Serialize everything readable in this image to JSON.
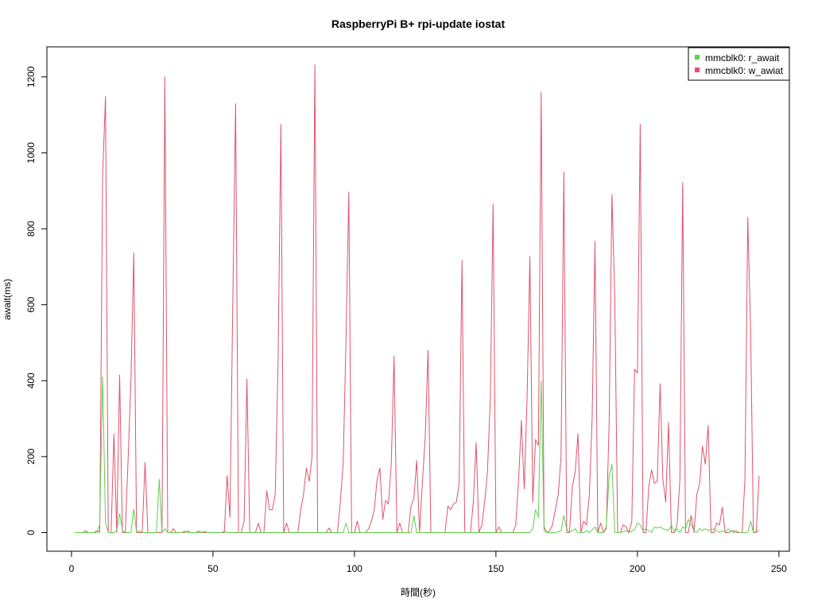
{
  "chart_data": {
    "type": "line",
    "title": "RaspberryPi B+ rpi-update iostat",
    "xlabel": "時間(秒)",
    "ylabel": "await(ms)",
    "xlim": [
      1,
      244
    ],
    "ylim": [
      0,
      1230
    ],
    "xticks": [
      0,
      50,
      100,
      150,
      200,
      250
    ],
    "yticks": [
      0,
      200,
      400,
      600,
      800,
      1000,
      1200
    ],
    "grid": false,
    "legend_position": "top-right",
    "series": [
      {
        "name": "mmcblk0: r_await",
        "color": "#61d04f",
        "points": [
          [
            1,
            0
          ],
          [
            9,
            0
          ],
          [
            10,
            20
          ],
          [
            11,
            410
          ],
          [
            12,
            25
          ],
          [
            13,
            0
          ],
          [
            15,
            0
          ],
          [
            16,
            5
          ],
          [
            17,
            50
          ],
          [
            18,
            5
          ],
          [
            19,
            0
          ],
          [
            21,
            0
          ],
          [
            22,
            62
          ],
          [
            23,
            0
          ],
          [
            24,
            5
          ],
          [
            25,
            0
          ],
          [
            30,
            0
          ],
          [
            31,
            140
          ],
          [
            32,
            0
          ],
          [
            33,
            10
          ],
          [
            34,
            0
          ],
          [
            39,
            0
          ],
          [
            40,
            4
          ],
          [
            41,
            0
          ],
          [
            46,
            0
          ],
          [
            47,
            4
          ],
          [
            48,
            0
          ],
          [
            53,
            0
          ],
          [
            54,
            4
          ],
          [
            55,
            0
          ],
          [
            96,
            0
          ],
          [
            97,
            25
          ],
          [
            98,
            0
          ],
          [
            120,
            0
          ],
          [
            121,
            45
          ],
          [
            122,
            0
          ],
          [
            162,
            0
          ],
          [
            163,
            10
          ],
          [
            164,
            60
          ],
          [
            165,
            40
          ],
          [
            166,
            400
          ],
          [
            167,
            5
          ],
          [
            168,
            0
          ],
          [
            171,
            0
          ],
          [
            173,
            5
          ],
          [
            174,
            45
          ],
          [
            175,
            10
          ],
          [
            176,
            0
          ],
          [
            178,
            10
          ],
          [
            179,
            0
          ],
          [
            181,
            0
          ],
          [
            182,
            5
          ],
          [
            183,
            0
          ],
          [
            185,
            15
          ],
          [
            186,
            0
          ],
          [
            188,
            0
          ],
          [
            189,
            15
          ],
          [
            190,
            150
          ],
          [
            191,
            180
          ],
          [
            192,
            0
          ],
          [
            194,
            0
          ],
          [
            196,
            5
          ],
          [
            197,
            0
          ],
          [
            199,
            8
          ],
          [
            200,
            25
          ],
          [
            201,
            20
          ],
          [
            202,
            5
          ],
          [
            203,
            10
          ],
          [
            204,
            5
          ],
          [
            205,
            0
          ],
          [
            206,
            15
          ],
          [
            207,
            12
          ],
          [
            208,
            15
          ],
          [
            209,
            10
          ],
          [
            210,
            8
          ],
          [
            211,
            5
          ],
          [
            212,
            20
          ],
          [
            213,
            0
          ],
          [
            214,
            10
          ],
          [
            215,
            0
          ],
          [
            216,
            15
          ],
          [
            217,
            10
          ],
          [
            218,
            35
          ],
          [
            219,
            20
          ],
          [
            220,
            5
          ],
          [
            221,
            0
          ],
          [
            222,
            10
          ],
          [
            223,
            5
          ],
          [
            224,
            10
          ],
          [
            225,
            5
          ],
          [
            226,
            8
          ],
          [
            227,
            10
          ],
          [
            228,
            5
          ],
          [
            229,
            0
          ],
          [
            230,
            5
          ],
          [
            231,
            0
          ],
          [
            232,
            10
          ],
          [
            233,
            5
          ],
          [
            234,
            0
          ],
          [
            235,
            5
          ],
          [
            236,
            0
          ],
          [
            239,
            0
          ],
          [
            240,
            30
          ],
          [
            241,
            0
          ],
          [
            243,
            5
          ]
        ]
      },
      {
        "name": "mmcblk0: w_awiat",
        "color": "#df536b",
        "points": [
          [
            1,
            0
          ],
          [
            4,
            0
          ],
          [
            5,
            5
          ],
          [
            6,
            0
          ],
          [
            8,
            0
          ],
          [
            9,
            5
          ],
          [
            10,
            0
          ],
          [
            11,
            940
          ],
          [
            12,
            1148
          ],
          [
            13,
            0
          ],
          [
            14,
            0
          ],
          [
            15,
            260
          ],
          [
            16,
            0
          ],
          [
            17,
            415
          ],
          [
            18,
            0
          ],
          [
            19,
            0
          ],
          [
            20,
            190
          ],
          [
            21,
            400
          ],
          [
            22,
            737
          ],
          [
            23,
            0
          ],
          [
            24,
            0
          ],
          [
            25,
            0
          ],
          [
            26,
            185
          ],
          [
            27,
            0
          ],
          [
            30,
            0
          ],
          [
            32,
            0
          ],
          [
            33,
            1200
          ],
          [
            34,
            0
          ],
          [
            35,
            0
          ],
          [
            36,
            10
          ],
          [
            37,
            0
          ],
          [
            40,
            0
          ],
          [
            41,
            4
          ],
          [
            42,
            0
          ],
          [
            44,
            0
          ],
          [
            45,
            4
          ],
          [
            46,
            0
          ],
          [
            54,
            0
          ],
          [
            55,
            150
          ],
          [
            56,
            40
          ],
          [
            57,
            600
          ],
          [
            58,
            1130
          ],
          [
            59,
            0
          ],
          [
            60,
            0
          ],
          [
            61,
            30
          ],
          [
            62,
            405
          ],
          [
            63,
            0
          ],
          [
            65,
            0
          ],
          [
            66,
            25
          ],
          [
            67,
            0
          ],
          [
            68,
            0
          ],
          [
            69,
            110
          ],
          [
            70,
            60
          ],
          [
            71,
            60
          ],
          [
            72,
            100
          ],
          [
            73,
            450
          ],
          [
            74,
            1075
          ],
          [
            75,
            0
          ],
          [
            76,
            25
          ],
          [
            77,
            0
          ],
          [
            80,
            0
          ],
          [
            81,
            60
          ],
          [
            82,
            100
          ],
          [
            83,
            170
          ],
          [
            84,
            135
          ],
          [
            85,
            200
          ],
          [
            86,
            1232
          ],
          [
            87,
            0
          ],
          [
            90,
            0
          ],
          [
            91,
            12
          ],
          [
            92,
            0
          ],
          [
            94,
            0
          ],
          [
            95,
            80
          ],
          [
            96,
            180
          ],
          [
            97,
            500
          ],
          [
            98,
            897
          ],
          [
            99,
            0
          ],
          [
            100,
            0
          ],
          [
            101,
            30
          ],
          [
            102,
            0
          ],
          [
            104,
            0
          ],
          [
            105,
            10
          ],
          [
            106,
            30
          ],
          [
            107,
            60
          ],
          [
            108,
            140
          ],
          [
            109,
            170
          ],
          [
            110,
            35
          ],
          [
            111,
            85
          ],
          [
            112,
            75
          ],
          [
            113,
            180
          ],
          [
            114,
            465
          ],
          [
            115,
            0
          ],
          [
            116,
            25
          ],
          [
            117,
            0
          ],
          [
            119,
            0
          ],
          [
            120,
            70
          ],
          [
            121,
            90
          ],
          [
            122,
            190
          ],
          [
            123,
            0
          ],
          [
            124,
            130
          ],
          [
            125,
            250
          ],
          [
            126,
            480
          ],
          [
            127,
            0
          ],
          [
            132,
            0
          ],
          [
            133,
            70
          ],
          [
            134,
            60
          ],
          [
            135,
            75
          ],
          [
            136,
            80
          ],
          [
            137,
            130
          ],
          [
            138,
            717
          ],
          [
            139,
            0
          ],
          [
            141,
            0
          ],
          [
            142,
            80
          ],
          [
            143,
            237
          ],
          [
            144,
            0
          ],
          [
            145,
            20
          ],
          [
            146,
            80
          ],
          [
            147,
            160
          ],
          [
            148,
            350
          ],
          [
            149,
            865
          ],
          [
            150,
            0
          ],
          [
            151,
            15
          ],
          [
            152,
            0
          ],
          [
            156,
            0
          ],
          [
            157,
            20
          ],
          [
            158,
            140
          ],
          [
            159,
            295
          ],
          [
            160,
            115
          ],
          [
            161,
            350
          ],
          [
            162,
            727
          ],
          [
            163,
            80
          ],
          [
            164,
            245
          ],
          [
            165,
            230
          ],
          [
            166,
            1160
          ],
          [
            167,
            15
          ],
          [
            168,
            0
          ],
          [
            169,
            5
          ],
          [
            170,
            20
          ],
          [
            171,
            60
          ],
          [
            172,
            100
          ],
          [
            173,
            200
          ],
          [
            174,
            950
          ],
          [
            175,
            0
          ],
          [
            176,
            0
          ],
          [
            177,
            120
          ],
          [
            178,
            160
          ],
          [
            179,
            260
          ],
          [
            180,
            0
          ],
          [
            181,
            30
          ],
          [
            182,
            20
          ],
          [
            183,
            100
          ],
          [
            184,
            300
          ],
          [
            185,
            767
          ],
          [
            186,
            0
          ],
          [
            187,
            25
          ],
          [
            188,
            0
          ],
          [
            189,
            10
          ],
          [
            190,
            290
          ],
          [
            191,
            890
          ],
          [
            192,
            620
          ],
          [
            193,
            0
          ],
          [
            194,
            0
          ],
          [
            195,
            20
          ],
          [
            196,
            15
          ],
          [
            197,
            0
          ],
          [
            198,
            30
          ],
          [
            199,
            430
          ],
          [
            200,
            420
          ],
          [
            201,
            1075
          ],
          [
            202,
            0
          ],
          [
            203,
            0
          ],
          [
            204,
            120
          ],
          [
            205,
            165
          ],
          [
            206,
            130
          ],
          [
            207,
            135
          ],
          [
            208,
            392
          ],
          [
            209,
            140
          ],
          [
            210,
            80
          ],
          [
            211,
            290
          ],
          [
            212,
            0
          ],
          [
            213,
            0
          ],
          [
            214,
            20
          ],
          [
            215,
            140
          ],
          [
            216,
            922
          ],
          [
            217,
            0
          ],
          [
            218,
            0
          ],
          [
            219,
            45
          ],
          [
            220,
            0
          ],
          [
            221,
            100
          ],
          [
            222,
            130
          ],
          [
            223,
            228
          ],
          [
            224,
            180
          ],
          [
            225,
            282
          ],
          [
            226,
            0
          ],
          [
            227,
            0
          ],
          [
            228,
            25
          ],
          [
            229,
            20
          ],
          [
            230,
            67
          ],
          [
            231,
            0
          ],
          [
            232,
            0
          ],
          [
            234,
            5
          ],
          [
            235,
            0
          ],
          [
            237,
            0
          ],
          [
            238,
            140
          ],
          [
            239,
            830
          ],
          [
            240,
            530
          ],
          [
            241,
            0
          ],
          [
            242,
            0
          ],
          [
            243,
            150
          ]
        ]
      }
    ]
  }
}
